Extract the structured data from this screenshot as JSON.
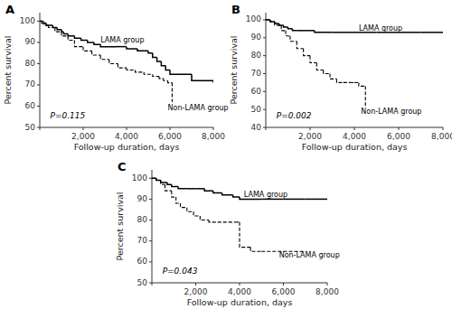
{
  "chart_data": [
    {
      "type": "step",
      "title": "A",
      "x_label": "Follow-up duration, days",
      "y_label": "Percent survival",
      "grid": false,
      "xlim": [
        0,
        8000
      ],
      "xticks": [
        {
          "value": 0,
          "label": null
        },
        {
          "value": 2000,
          "label": "2,000"
        },
        {
          "value": 4000,
          "label": "4,000"
        },
        {
          "value": 6000,
          "label": "6,000"
        },
        {
          "value": 8000,
          "label": "8,000"
        }
      ],
      "ylim": [
        50,
        104
      ],
      "yticks": [
        50,
        60,
        70,
        80,
        90,
        100
      ],
      "series": [
        {
          "color": "black",
          "line_style": "solid",
          "x": [
            0,
            100,
            300,
            600,
            800,
            1000,
            1100,
            1300,
            1600,
            1900,
            2200,
            2500,
            2800,
            3500,
            4000,
            4500,
            5000,
            5200,
            5400,
            5600,
            5800,
            6000,
            7000,
            8000
          ],
          "values": [
            100,
            99,
            98,
            97,
            96,
            95,
            94,
            93,
            92,
            91,
            90,
            89,
            88,
            88,
            87,
            86,
            85,
            83,
            81,
            79,
            77,
            75,
            72,
            71
          ]
        },
        {
          "color": "black",
          "line_style": "dashed",
          "x": [
            0,
            200,
            400,
            700,
            1000,
            1300,
            1600,
            2000,
            2400,
            2800,
            3200,
            3600,
            4000,
            4400,
            4800,
            5200,
            5500,
            5700,
            5900,
            6100
          ],
          "values": [
            100,
            98,
            97,
            95,
            93,
            91,
            88,
            86,
            84,
            82,
            80,
            78,
            77,
            76,
            75,
            74,
            73,
            72,
            71,
            62
          ]
        }
      ],
      "annotations": [
        {
          "text": "P=0.115"
        },
        {
          "text": "LAMA group",
          "x": 2800,
          "y": 91
        },
        {
          "text": "Non-LAMA group",
          "x": 5900,
          "y": 59
        }
      ]
    },
    {
      "type": "step",
      "title": "B",
      "x_label": "Follow-up duration, days",
      "y_label": "Percent survival",
      "grid": false,
      "xlim": [
        0,
        8000
      ],
      "xticks": [
        {
          "value": 0,
          "label": null
        },
        {
          "value": 2000,
          "label": "2,000"
        },
        {
          "value": 4000,
          "label": "4,000"
        },
        {
          "value": 6000,
          "label": "6,000"
        },
        {
          "value": 8000,
          "label": "8,000"
        }
      ],
      "ylim": [
        40,
        104
      ],
      "yticks": [
        40,
        50,
        60,
        70,
        80,
        90,
        100
      ],
      "series": [
        {
          "color": "black",
          "line_style": "solid",
          "x": [
            0,
            200,
            400,
            600,
            800,
            1000,
            1200,
            1400,
            1800,
            2200,
            3000,
            4000,
            5000,
            6000,
            7000,
            8000
          ],
          "values": [
            100,
            99,
            98,
            97,
            96,
            95,
            94,
            94,
            94,
            93,
            93,
            93,
            93,
            93,
            93,
            93
          ]
        },
        {
          "color": "black",
          "line_style": "dashed",
          "x": [
            0,
            200,
            400,
            700,
            900,
            1100,
            1400,
            1700,
            2000,
            2300,
            2600,
            2900,
            3200,
            3500,
            3800,
            4000,
            4200,
            4500
          ],
          "values": [
            100,
            99,
            97,
            94,
            91,
            88,
            84,
            80,
            76,
            72,
            70,
            67,
            65,
            65,
            65,
            65,
            63,
            51
          ]
        }
      ],
      "annotations": [
        {
          "text": "P=0.002"
        },
        {
          "text": "LAMA group",
          "x": 4200,
          "y": 95
        },
        {
          "text": "Non-LAMA group",
          "x": 4300,
          "y": 49
        }
      ]
    },
    {
      "type": "step",
      "title": "C",
      "x_label": "Follow-up duration, days",
      "y_label": "Percent survival",
      "grid": false,
      "xlim": [
        0,
        8000
      ],
      "xticks": [
        {
          "value": 0,
          "label": null
        },
        {
          "value": 2000,
          "label": "2,000"
        },
        {
          "value": 4000,
          "label": "4,000"
        },
        {
          "value": 6000,
          "label": "6,000"
        },
        {
          "value": 8000,
          "label": "8,000"
        }
      ],
      "ylim": [
        50,
        104
      ],
      "yticks": [
        50,
        60,
        70,
        80,
        90,
        100
      ],
      "series": [
        {
          "color": "black",
          "line_style": "solid",
          "x": [
            0,
            200,
            400,
            700,
            900,
            1200,
            1600,
            2000,
            2400,
            2800,
            3200,
            3700,
            4000,
            5000,
            6000,
            7000,
            8000
          ],
          "values": [
            100,
            99,
            98,
            97,
            96,
            95,
            95,
            95,
            94,
            93,
            92,
            91,
            90,
            90,
            90,
            90,
            90
          ]
        },
        {
          "color": "black",
          "line_style": "dashed",
          "x": [
            0,
            200,
            400,
            600,
            900,
            1100,
            1300,
            1600,
            1900,
            2200,
            2600,
            3000,
            3500,
            3800,
            4000,
            4500,
            5000,
            6000,
            7000
          ],
          "values": [
            100,
            99,
            97,
            94,
            91,
            88,
            86,
            84,
            82,
            80,
            79,
            79,
            79,
            79,
            67,
            65,
            65,
            65,
            65
          ]
        }
      ],
      "annotations": [
        {
          "text": "P=0.043"
        },
        {
          "text": "LAMA group",
          "x": 4200,
          "y": 92
        },
        {
          "text": "Non-LAMA group",
          "x": 5800,
          "y": 63
        }
      ]
    }
  ]
}
